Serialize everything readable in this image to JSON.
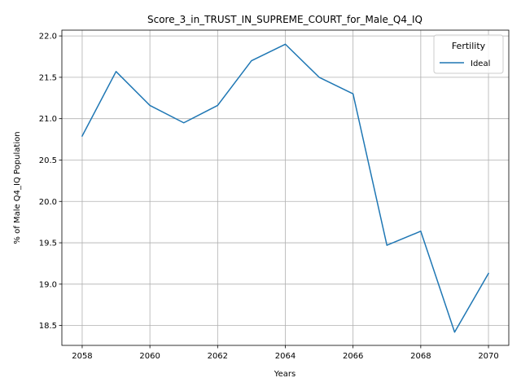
{
  "chart_data": {
    "type": "line",
    "title": "Score_3_in_TRUST_IN_SUPREME_COURT_for_Male_Q4_IQ",
    "xlabel": "Years",
    "ylabel": "% of Male Q4_IQ Population",
    "x": [
      2058,
      2059,
      2060,
      2061,
      2062,
      2063,
      2064,
      2065,
      2066,
      2067,
      2068,
      2069,
      2070
    ],
    "series": [
      {
        "name": "Ideal",
        "color": "#1f77b4",
        "values": [
          20.79,
          21.57,
          21.16,
          20.95,
          21.16,
          21.7,
          21.9,
          21.5,
          21.3,
          19.47,
          19.64,
          18.42,
          19.13
        ]
      }
    ],
    "xlim": [
      2057.4,
      2070.6
    ],
    "ylim": [
      18.26,
      22.07
    ],
    "xticks": [
      2058,
      2060,
      2062,
      2064,
      2066,
      2068,
      2070
    ],
    "yticks": [
      18.5,
      19.0,
      19.5,
      20.0,
      20.5,
      21.0,
      21.5,
      22.0
    ],
    "grid": true,
    "legend": {
      "title": "Fertility",
      "position": "top-right"
    }
  }
}
